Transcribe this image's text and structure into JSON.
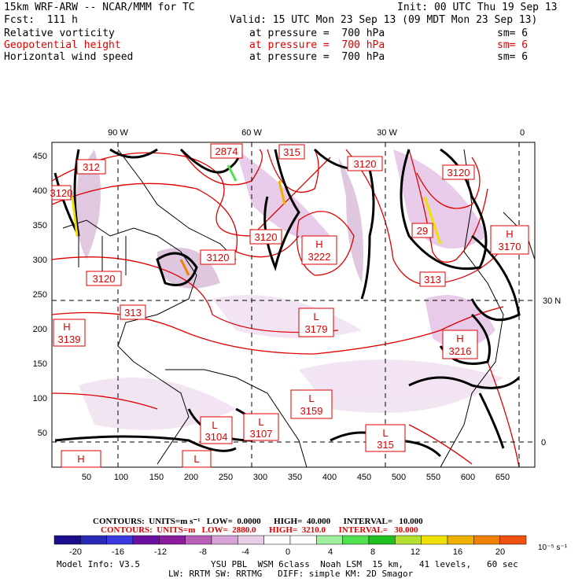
{
  "header": {
    "model": "15km WRF-ARW -- NCAR/MMM for TC",
    "init": "Init: 00 UTC Thu 19 Sep 13",
    "fcst": "Fcst:  111 h",
    "valid": "Valid: 15 UTC Mon 23 Sep 13 (09 MDT Mon 23 Sep 13)",
    "fields": [
      {
        "name": "Relative vorticity",
        "level": "at pressure =  700 hPa",
        "sm": "sm= 6",
        "color": "#000000"
      },
      {
        "name": "Geopotential height",
        "level": "at pressure =  700 hPa",
        "sm": "sm= 6",
        "color": "#e00000"
      },
      {
        "name": "Horizontal wind speed",
        "level": "at pressure =  700 hPa",
        "sm": "sm= 6",
        "color": "#000000"
      }
    ]
  },
  "map": {
    "top_labels": [
      "90 W",
      "60 W",
      "30 W",
      "0"
    ],
    "right_labels": [
      "30 N",
      "0"
    ],
    "x_ticks": [
      "50",
      "100",
      "150",
      "200",
      "250",
      "300",
      "350",
      "400",
      "450",
      "500",
      "550",
      "600",
      "650"
    ],
    "y_ticks": [
      "450",
      "400",
      "350",
      "300",
      "250",
      "200",
      "150",
      "100",
      "50"
    ],
    "centers": [
      {
        "type": "H",
        "value": "3222"
      },
      {
        "type": "L",
        "value": "3179"
      },
      {
        "type": "L",
        "value": "3159"
      },
      {
        "type": "H",
        "value": "3216"
      },
      {
        "type": "H",
        "value": "3170"
      },
      {
        "type": "H",
        "value": "3139"
      },
      {
        "type": "H",
        "value": ""
      },
      {
        "type": "L",
        "value": "3104"
      },
      {
        "type": "L",
        "value": "3107"
      },
      {
        "type": "L",
        "value": "315"
      },
      {
        "type": "L",
        "value": ""
      }
    ],
    "contour_labels": [
      "3120",
      "3120",
      "3120",
      "3120",
      "3120",
      "2874",
      "315",
      "313",
      "29",
      "313",
      "312",
      "3120"
    ]
  },
  "legend": {
    "line1": "CONTOURS:  UNITS=m s⁻¹   LOW=  0.0000      HIGH=  40.000      INTERVAL=   10.000",
    "line2": "CONTOURS:  UNITS=m   LOW=  2880.0      HIGH=  3210.0      INTERVAL=   30.000",
    "scale_labels": [
      "-20",
      "-16",
      "-12",
      "-8",
      "-4",
      "0",
      "4",
      "8",
      "12",
      "16",
      "20"
    ],
    "units": "10⁻⁵ s⁻¹",
    "colors": [
      "#1a0e8c",
      "#2a2ab8",
      "#3a3ae0",
      "#6a10a0",
      "#8c1c9c",
      "#b860b8",
      "#d7a2d7",
      "#e8cfe8",
      "#ffffff",
      "#ffffff",
      "#a0f0a0",
      "#50e050",
      "#20c020",
      "#b4e030",
      "#f0e000",
      "#f0b000",
      "#f08000",
      "#f05010"
    ]
  },
  "footer": {
    "model_info": "Model Info: V3.5",
    "line1": "YSU PBL  WSM 6class  Noah LSM  15 km,   41 levels,   60 sec",
    "line2": "LW: RRTM SW: RRTMG   DIFF: simple KM: 2D Smagor"
  }
}
